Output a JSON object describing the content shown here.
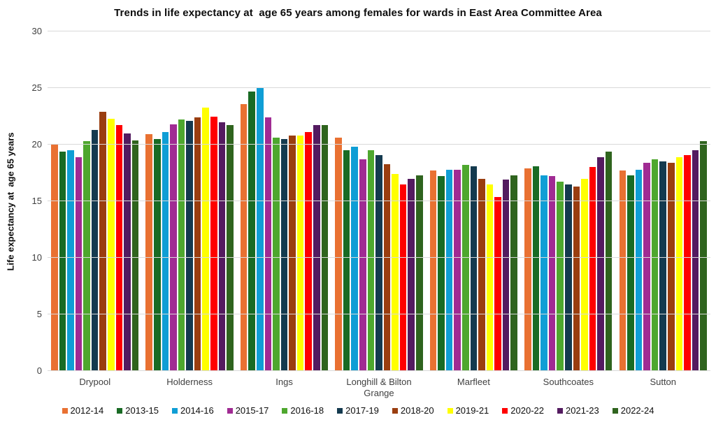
{
  "chart_data": {
    "type": "bar",
    "title": "Trends in life expectancy at  age 65 years among females for wards in East Area Committee Area",
    "ylabel": "Life expectancy at  age 65 years",
    "xlabel": "",
    "ylim": [
      0,
      30
    ],
    "yticks": [
      0,
      5,
      10,
      15,
      20,
      25,
      30
    ],
    "grid": "horizontal",
    "legend_position": "bottom",
    "gridline_color": "#d9d9d9",
    "categories": [
      "Drypool",
      "Holderness",
      "Ings",
      "Longhill & Bilton Grange",
      "Marfleet",
      "Southcoates",
      "Sutton"
    ],
    "series": [
      {
        "name": "2012-14",
        "color": "#E97132",
        "values": [
          20.0,
          20.9,
          23.6,
          20.6,
          17.7,
          17.9,
          17.7
        ]
      },
      {
        "name": "2013-15",
        "color": "#196B24",
        "values": [
          19.4,
          20.5,
          24.7,
          19.5,
          17.2,
          18.1,
          17.3
        ]
      },
      {
        "name": "2014-16",
        "color": "#0F9ED5",
        "values": [
          19.5,
          21.1,
          25.0,
          19.8,
          17.8,
          17.3,
          17.8
        ]
      },
      {
        "name": "2015-17",
        "color": "#A02B93",
        "values": [
          18.9,
          21.8,
          22.4,
          18.7,
          17.8,
          17.2,
          18.4
        ]
      },
      {
        "name": "2016-18",
        "color": "#4EA72E",
        "values": [
          20.3,
          22.2,
          20.6,
          19.5,
          18.2,
          16.7,
          18.7
        ]
      },
      {
        "name": "2017-19",
        "color": "#143A4F",
        "values": [
          21.3,
          22.1,
          20.5,
          19.1,
          18.1,
          16.5,
          18.5
        ]
      },
      {
        "name": "2018-20",
        "color": "#9A3E10",
        "values": [
          22.9,
          22.4,
          20.8,
          18.3,
          17.0,
          16.3,
          18.4
        ]
      },
      {
        "name": "2019-21",
        "color": "#FFFF00",
        "values": [
          22.3,
          23.3,
          20.8,
          17.4,
          16.5,
          17.0,
          18.9
        ]
      },
      {
        "name": "2020-22",
        "color": "#FF0000",
        "values": [
          21.7,
          22.5,
          21.1,
          16.5,
          15.4,
          18.0,
          19.1
        ]
      },
      {
        "name": "2021-23",
        "color": "#541B60",
        "values": [
          21.0,
          22.0,
          21.7,
          17.0,
          16.9,
          18.9,
          19.5
        ]
      },
      {
        "name": "2022-24",
        "color": "#2F641E",
        "values": [
          20.4,
          21.7,
          21.7,
          17.3,
          17.3,
          19.4,
          20.3
        ]
      }
    ]
  }
}
